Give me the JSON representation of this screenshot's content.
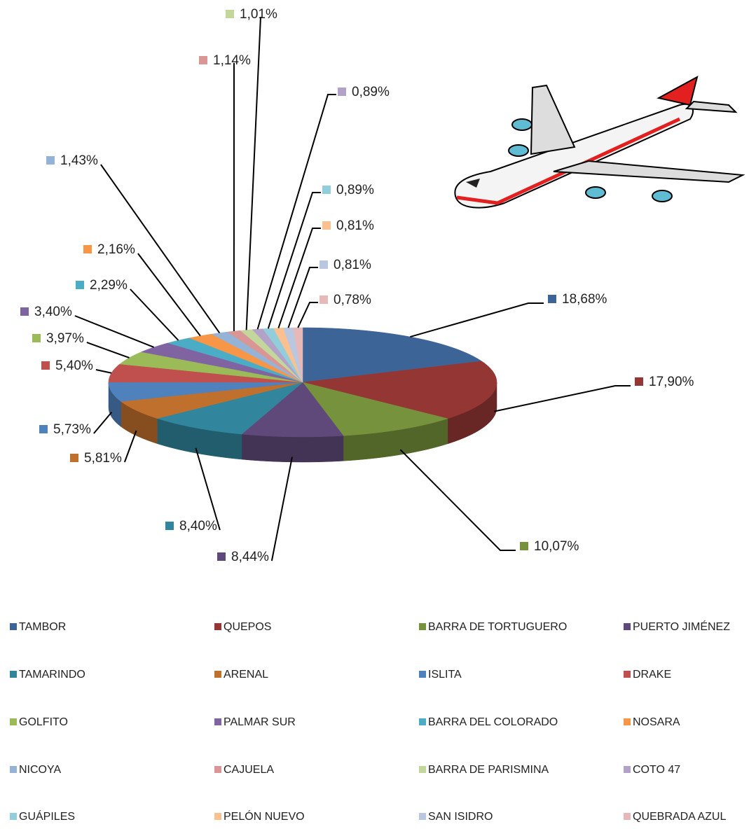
{
  "chart_data": {
    "type": "pie3d",
    "categories": [
      "TAMBOR",
      "QUEPOS",
      "BARRA DE TORTUGUERO",
      "PUERTO JIMÉNEZ",
      "TAMARINDO",
      "ARENAL",
      "ISLITA",
      "DRAKE",
      "GOLFITO",
      "PALMAR SUR",
      "BARRA DEL COLORADO",
      "NOSARA",
      "NICOYA",
      "CAJUELA",
      "BARRA DE PARISMINA",
      "COTO 47",
      "GUÁPILES",
      "PELÓN NUEVO",
      "SAN ISIDRO",
      "QUEBRADA AZUL"
    ],
    "values": [
      18.68,
      17.9,
      10.07,
      8.44,
      8.4,
      5.81,
      5.73,
      5.4,
      3.97,
      3.4,
      2.29,
      2.16,
      1.43,
      1.14,
      1.01,
      0.89,
      0.89,
      0.81,
      0.81,
      0.78
    ],
    "value_labels": [
      "18,68%",
      "17,90%",
      "10,07%",
      "8,44%",
      "8,40%",
      "5,81%",
      "5,73%",
      "5,40%",
      "3,97%",
      "3,40%",
      "2,29%",
      "2,16%",
      "1,43%",
      "1,14%",
      "1,01%",
      "0,89%",
      "0,89%",
      "0,81%",
      "0,81%",
      "0,78%"
    ],
    "colors": [
      "#3d6496",
      "#943634",
      "#76923c",
      "#5f497a",
      "#31859c",
      "#c0702d",
      "#4f81bd",
      "#c0504d",
      "#9bbb59",
      "#8064a2",
      "#4bacc6",
      "#f79646",
      "#95b3d7",
      "#d99694",
      "#c3d69b",
      "#b2a2c7",
      "#92cddc",
      "#fac08f",
      "#b9c7e0",
      "#e6b9b8"
    ],
    "legend": "bottom"
  }
}
